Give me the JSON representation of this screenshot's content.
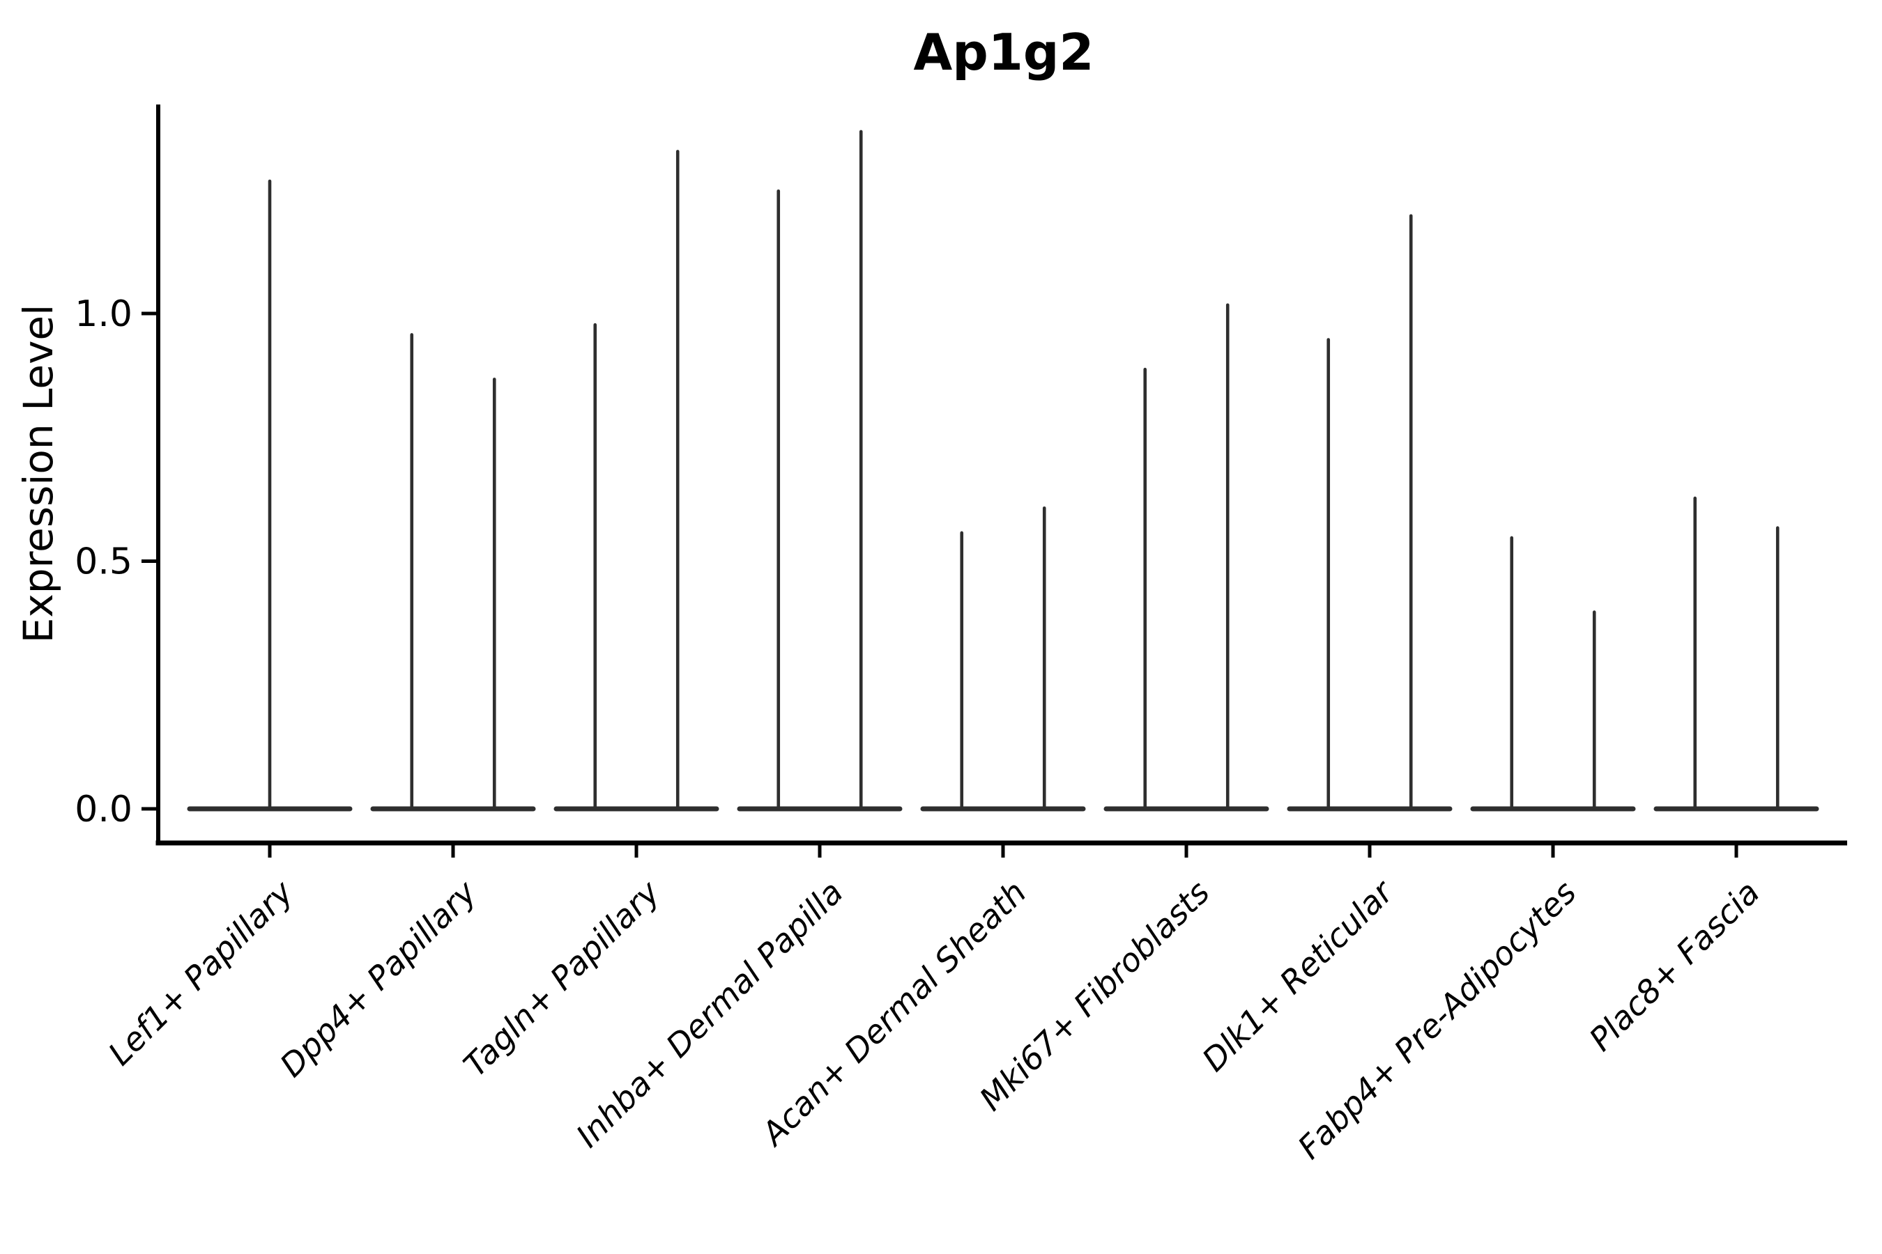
{
  "chart_data": {
    "type": "violin",
    "title": "Ap1g2",
    "ylabel": "Expression Level",
    "xlabel": "",
    "categories": [
      "Lef1+ Papillary",
      "Dpp4+ Papillary",
      "Tagln+ Papillary",
      "Inhba+ Dermal Papilla",
      "Acan+ Dermal Sheath",
      "Mki67+ Fibroblasts",
      "Dlk1+ Reticular",
      "Fabp4+ Pre-Adipocytes",
      "Plac8+ Fascia"
    ],
    "yticks": [
      0.0,
      0.5,
      1.0
    ],
    "ytick_labels": [
      "0.0",
      "0.5",
      "1.0"
    ],
    "ylim": [
      -0.07,
      1.42
    ],
    "grid": false,
    "legend": "none",
    "violin_color": "#2e2e2e",
    "axis_color": "#000000",
    "violins": [
      {
        "category": "Lef1+ Papillary",
        "spike_maxima": [
          1.27
        ]
      },
      {
        "category": "Dpp4+ Papillary",
        "spike_maxima": [
          0.96,
          0.87
        ]
      },
      {
        "category": "Tagln+ Papillary",
        "spike_maxima": [
          0.98,
          1.33
        ]
      },
      {
        "category": "Inhba+ Dermal Papilla",
        "spike_maxima": [
          1.25,
          1.37
        ]
      },
      {
        "category": "Acan+ Dermal Sheath",
        "spike_maxima": [
          0.56,
          0.61
        ]
      },
      {
        "category": "Mki67+ Fibroblasts",
        "spike_maxima": [
          0.89,
          1.02
        ]
      },
      {
        "category": "Dlk1+ Reticular",
        "spike_maxima": [
          0.95,
          1.2
        ]
      },
      {
        "category": "Fabp4+ Pre-Adipocytes",
        "spike_maxima": [
          0.55,
          0.4
        ]
      },
      {
        "category": "Plac8+ Fascia",
        "spike_maxima": [
          0.63,
          0.57
        ]
      }
    ],
    "shape_note": "Expression mass concentrated at 0 (flat wide base) with one thin spike per violin up to its maximum; first category has a single full-width violin, all other categories have two side-by-side violins."
  }
}
